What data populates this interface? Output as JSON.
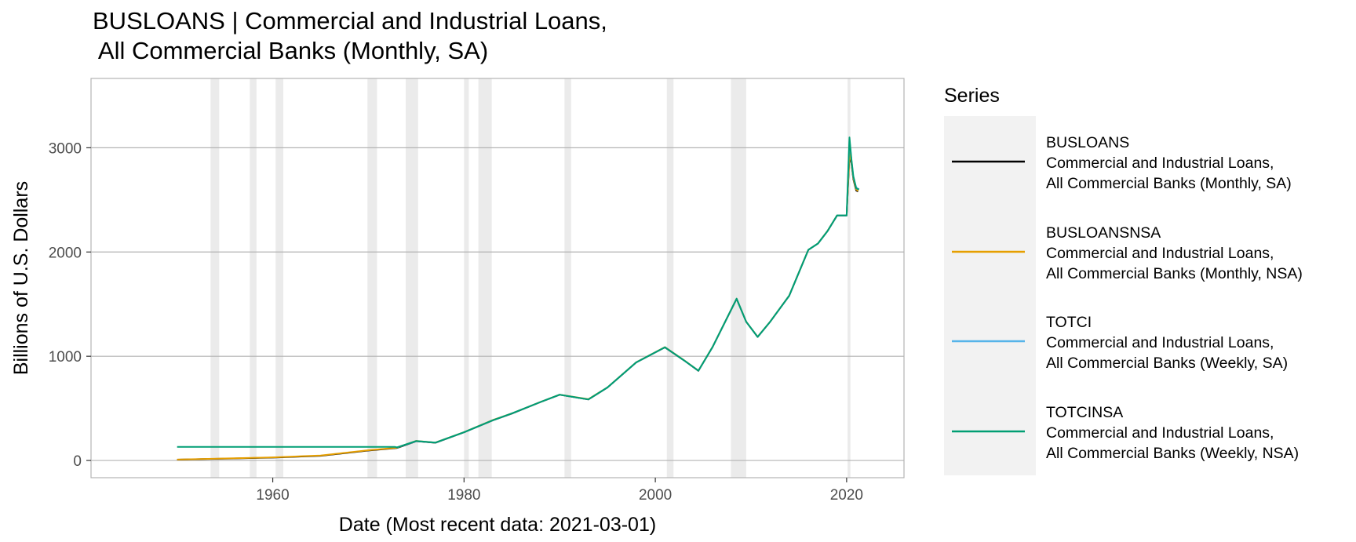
{
  "chart_data": {
    "type": "line",
    "title_line1": "BUSLOANS | Commercial and Industrial Loans,",
    "title_line2": " All Commercial Banks (Monthly, SA)",
    "xlabel": "Date (Most recent data: 2021-03-01)",
    "ylabel": "Billions of U.S. Dollars",
    "xlim": [
      1941,
      2026
    ],
    "ylim": [
      -165,
      3665
    ],
    "x_ticks": [
      1960,
      1980,
      2000,
      2020
    ],
    "y_ticks": [
      0,
      1000,
      2000,
      3000
    ],
    "grid": true,
    "legend_position": "right",
    "legend_title": "Series",
    "recessions": [
      [
        1953.5,
        1954.4
      ],
      [
        1957.6,
        1958.3
      ],
      [
        1960.3,
        1961.1
      ],
      [
        1969.9,
        1970.9
      ],
      [
        1973.9,
        1975.2
      ],
      [
        1980.0,
        1980.5
      ],
      [
        1981.5,
        1982.9
      ],
      [
        1990.5,
        1991.2
      ],
      [
        2001.2,
        2001.9
      ],
      [
        2007.9,
        2009.5
      ],
      [
        2020.1,
        2020.4
      ]
    ],
    "series": [
      {
        "name": "BUSLOANS",
        "desc1": "Commercial and Industrial Loans,",
        "desc2": " All Commercial Banks (Monthly, SA)",
        "color": "#000000",
        "x": [
          1950,
          1955,
          1960,
          1965,
          1970,
          1973,
          1975,
          1977,
          1980,
          1983,
          1985,
          1988,
          1990,
          1993,
          1995,
          1998,
          2001,
          2003,
          2004.5,
          2006,
          2008.5,
          2009.5,
          2010.7,
          2012,
          2014,
          2016,
          2017,
          2018,
          2019,
          2020.0,
          2020.3,
          2020.5,
          2020.7,
          2021.0,
          2021.2
        ],
        "y": [
          8,
          18,
          28,
          45,
          95,
          120,
          185,
          170,
          270,
          385,
          450,
          560,
          630,
          585,
          700,
          940,
          1085,
          960,
          860,
          1090,
          1550,
          1330,
          1185,
          1330,
          1580,
          2020,
          2080,
          2200,
          2350,
          2350,
          2920,
          2850,
          2700,
          2590,
          2580
        ]
      },
      {
        "name": "BUSLOANSNSA",
        "desc1": "Commercial and Industrial Loans,",
        "desc2": " All Commercial Banks (Monthly, NSA)",
        "color": "#E69F00",
        "x": [
          1950,
          1955,
          1960,
          1965,
          1970,
          1973,
          1975,
          1977,
          1980,
          1983,
          1985,
          1988,
          1990,
          1993,
          1995,
          1998,
          2001,
          2003,
          2004.5,
          2006,
          2008.5,
          2009.5,
          2010.7,
          2012,
          2014,
          2016,
          2017,
          2018,
          2019,
          2020.0,
          2020.3,
          2020.5,
          2020.7,
          2021.0,
          2021.2
        ],
        "y": [
          9,
          19,
          30,
          48,
          98,
          123,
          188,
          172,
          272,
          388,
          452,
          562,
          632,
          588,
          702,
          942,
          1088,
          962,
          862,
          1092,
          1553,
          1332,
          1187,
          1332,
          1582,
          2022,
          2082,
          2202,
          2352,
          2352,
          2950,
          2860,
          2710,
          2600,
          2585
        ]
      },
      {
        "name": "TOTCI",
        "desc1": "Commercial and Industrial Loans,",
        "desc2": " All Commercial Banks (Weekly, SA)",
        "color": "#56B4E9",
        "x": [
          1973,
          1975,
          1977,
          1980,
          1983,
          1985,
          1988,
          1990,
          1993,
          1995,
          1998,
          2001,
          2003,
          2004.5,
          2006,
          2008.5,
          2009.5,
          2010.7,
          2012,
          2014,
          2016,
          2017,
          2018,
          2019,
          2020.0,
          2020.3,
          2020.5,
          2020.7,
          2021.0,
          2021.3
        ],
        "y": [
          125,
          186,
          171,
          271,
          386,
          451,
          561,
          631,
          586,
          701,
          941,
          1086,
          961,
          861,
          1091,
          1552,
          1331,
          1186,
          1331,
          1581,
          2021,
          2081,
          2201,
          2351,
          2351,
          3080,
          2880,
          2720,
          2620,
          2600
        ]
      },
      {
        "name": "TOTCINSA",
        "desc1": "Commercial and Industrial Loans,",
        "desc2": "All Commercial Banks (Weekly, NSA)",
        "color": "#009E73",
        "x": [
          1950,
          1972.8,
          1973,
          1975,
          1977,
          1980,
          1983,
          1985,
          1988,
          1990,
          1993,
          1995,
          1998,
          2001,
          2003,
          2004.5,
          2006,
          2008.5,
          2009.5,
          2010.7,
          2012,
          2014,
          2016,
          2017,
          2018,
          2019,
          2020.0,
          2020.3,
          2020.5,
          2020.7,
          2021.0,
          2021.3
        ],
        "y": [
          130,
          130,
          126,
          187,
          171,
          271,
          386,
          451,
          561,
          631,
          586,
          701,
          941,
          1086,
          961,
          861,
          1091,
          1552,
          1331,
          1186,
          1331,
          1581,
          2021,
          2081,
          2201,
          2351,
          2351,
          3100,
          2890,
          2730,
          2610,
          2600
        ]
      }
    ]
  }
}
